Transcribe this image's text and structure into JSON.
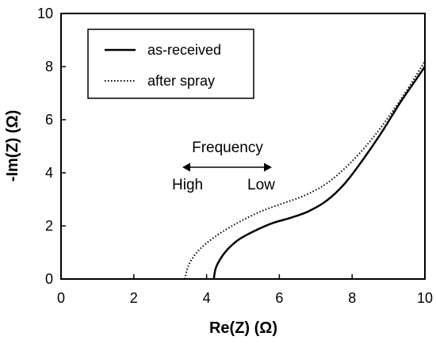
{
  "chart_data": {
    "type": "line",
    "title": "",
    "xlabel": "Re(Z) (Ω)",
    "ylabel": "-Im(Z) (Ω)",
    "xlim": [
      0,
      10
    ],
    "ylim": [
      0,
      10
    ],
    "xticks": [
      "0",
      "2",
      "4",
      "6",
      "8",
      "10"
    ],
    "yticks": [
      "0",
      "2",
      "4",
      "6",
      "8",
      "10"
    ],
    "grid": false,
    "legend_position": "top-left",
    "series": [
      {
        "name": "as-received",
        "style": "solid",
        "x": [
          4.2,
          4.25,
          4.4,
          4.6,
          4.9,
          5.3,
          5.8,
          6.3,
          6.8,
          7.3,
          7.8,
          8.3,
          8.8,
          9.3,
          9.7,
          10.0
        ],
        "y": [
          0.0,
          0.4,
          0.8,
          1.15,
          1.5,
          1.8,
          2.1,
          2.3,
          2.55,
          2.95,
          3.6,
          4.5,
          5.5,
          6.6,
          7.4,
          8.0
        ]
      },
      {
        "name": "after spray",
        "style": "dotted",
        "x": [
          3.4,
          3.5,
          3.7,
          4.0,
          4.4,
          4.9,
          5.5,
          6.1,
          6.7,
          7.3,
          7.9,
          8.5,
          9.0,
          9.5,
          10.0
        ],
        "y": [
          0.0,
          0.5,
          0.95,
          1.35,
          1.75,
          2.15,
          2.55,
          2.85,
          3.15,
          3.6,
          4.3,
          5.2,
          6.1,
          7.1,
          8.2
        ]
      }
    ],
    "annotations": {
      "frequency_label": "Frequency",
      "high_label": "High",
      "low_label": "Low"
    }
  }
}
